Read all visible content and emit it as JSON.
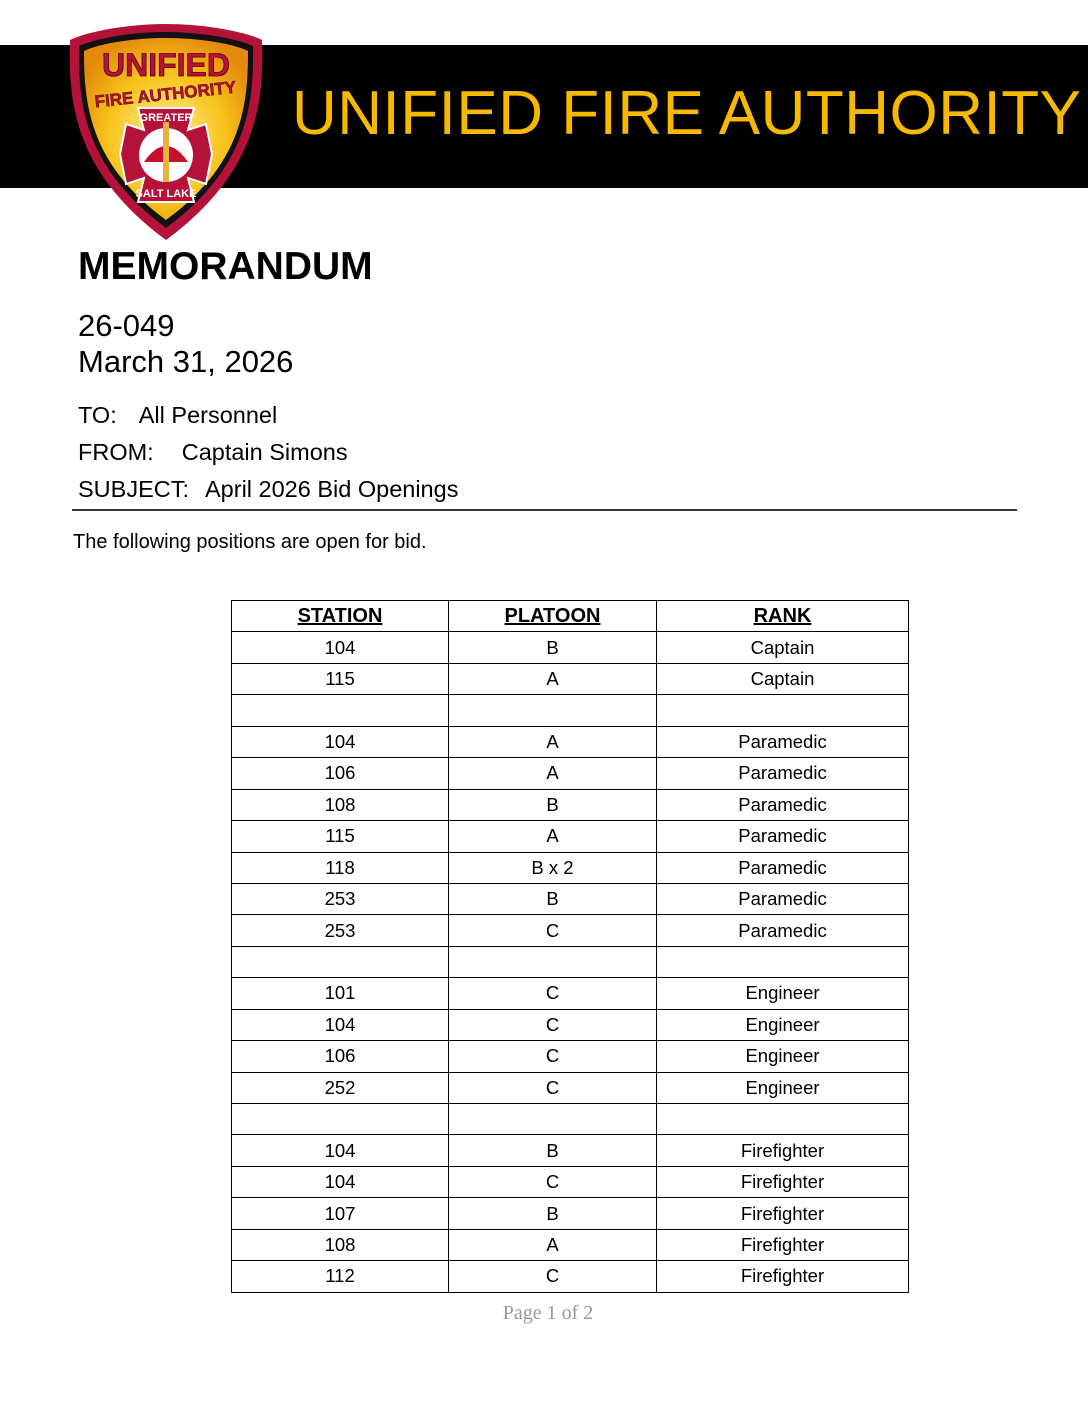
{
  "header": {
    "organization": "UNIFIED FIRE AUTHORITY",
    "logo_text": [
      "UNIFIED",
      "FIRE AUTHORITY",
      "GREATER",
      "SALT LAKE"
    ],
    "accent_color": "#f7b900"
  },
  "memo": {
    "title": "MEMORANDUM",
    "number": "26-049",
    "date": "March 31, 2026",
    "to_label": "TO:",
    "to": "All Personnel",
    "from_label": "FROM:",
    "from": "Captain Simons",
    "subject_label": "SUBJECT:",
    "subject": "April 2026 Bid Openings",
    "intro": "The following positions are open for bid."
  },
  "table": {
    "headers": [
      "STATION",
      "PLATOON",
      "RANK"
    ],
    "rows": [
      [
        "104",
        "B",
        "Captain"
      ],
      [
        "115",
        "A",
        "Captain"
      ],
      [
        "",
        "",
        ""
      ],
      [
        "104",
        "A",
        "Paramedic"
      ],
      [
        "106",
        "A",
        "Paramedic"
      ],
      [
        "108",
        "B",
        "Paramedic"
      ],
      [
        "115",
        "A",
        "Paramedic"
      ],
      [
        "118",
        "B x 2",
        "Paramedic"
      ],
      [
        "253",
        "B",
        "Paramedic"
      ],
      [
        "253",
        "C",
        "Paramedic"
      ],
      [
        "",
        "",
        ""
      ],
      [
        "101",
        "C",
        "Engineer"
      ],
      [
        "104",
        "C",
        "Engineer"
      ],
      [
        "106",
        "C",
        "Engineer"
      ],
      [
        "252",
        "C",
        "Engineer"
      ],
      [
        "",
        "",
        ""
      ],
      [
        "104",
        "B",
        "Firefighter"
      ],
      [
        "104",
        "C",
        "Firefighter"
      ],
      [
        "107",
        "B",
        "Firefighter"
      ],
      [
        "108",
        "A",
        "Firefighter"
      ],
      [
        "112",
        "C",
        "Firefighter"
      ]
    ]
  },
  "footer": {
    "page": "Page 1 of 2"
  }
}
